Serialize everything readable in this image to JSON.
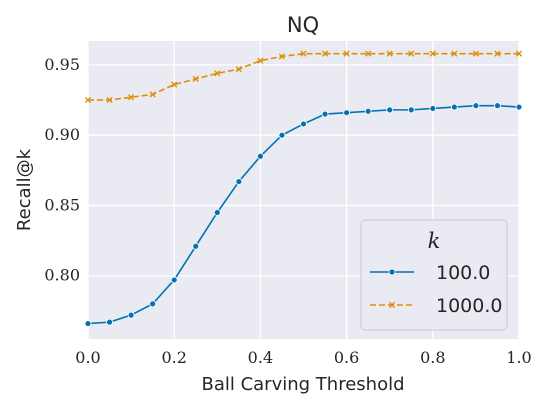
{
  "chart_data": {
    "type": "line",
    "title": "NQ",
    "xlabel": "Ball Carving Threshold",
    "ylabel": "Recall@k",
    "xlim": [
      0.0,
      1.0
    ],
    "ylim": [
      0.755,
      0.967
    ],
    "xticks": [
      0.0,
      0.2,
      0.4,
      0.6,
      0.8,
      1.0
    ],
    "xtick_labels": [
      "0.0",
      "0.2",
      "0.4",
      "0.6",
      "0.8",
      "1.0"
    ],
    "yticks": [
      0.8,
      0.85,
      0.9,
      0.95
    ],
    "ytick_labels": [
      "0.80",
      "0.85",
      "0.90",
      "0.95"
    ],
    "grid": true,
    "legend_title": "k",
    "legend_position": "lower-right",
    "x": [
      0.0,
      0.05,
      0.1,
      0.15,
      0.2,
      0.25,
      0.3,
      0.35,
      0.4,
      0.45,
      0.5,
      0.55,
      0.6,
      0.65,
      0.7,
      0.75,
      0.8,
      0.85,
      0.9,
      0.95,
      1.0
    ],
    "series": [
      {
        "name": "100.0",
        "color": "#0173b2",
        "marker": "circle",
        "linestyle": "solid",
        "values": [
          0.766,
          0.767,
          0.772,
          0.78,
          0.797,
          0.821,
          0.845,
          0.867,
          0.885,
          0.9,
          0.908,
          0.915,
          0.916,
          0.917,
          0.918,
          0.918,
          0.919,
          0.92,
          0.921,
          0.921,
          0.92
        ]
      },
      {
        "name": "1000.0",
        "color": "#de8f05",
        "marker": "x",
        "linestyle": "dashed",
        "values": [
          0.925,
          0.925,
          0.927,
          0.929,
          0.936,
          0.94,
          0.944,
          0.947,
          0.953,
          0.956,
          0.958,
          0.958,
          0.958,
          0.958,
          0.958,
          0.958,
          0.958,
          0.958,
          0.958,
          0.958,
          0.958
        ]
      }
    ]
  }
}
